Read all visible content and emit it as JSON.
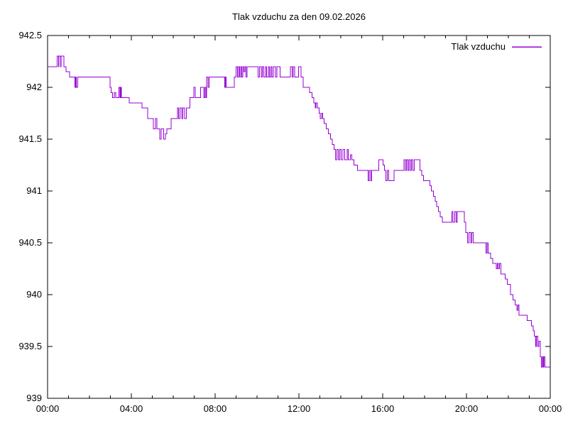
{
  "title": "Tlak vzduchu za den 09.02.2026",
  "legend": {
    "label": "Tlak vzduchu",
    "position": "top-right-inside"
  },
  "colors": {
    "background": "#ffffff",
    "axis": "#000000",
    "line": "#9400d3",
    "text": "#000000"
  },
  "chart_data": {
    "type": "line",
    "title": "Tlak vzduchu za den 09.02.2026",
    "xlabel": "",
    "ylabel": "",
    "x_unit": "hours (HH:MM)",
    "y_unit": "hPa (implied)",
    "xlim_hours": [
      0,
      24
    ],
    "ylim": [
      939,
      942.5
    ],
    "grid": false,
    "legend_position": "top-right-inside",
    "x_ticks_major_hours": [
      0,
      4,
      8,
      12,
      16,
      20,
      24
    ],
    "x_tick_labels": [
      "00:00",
      "04:00",
      "08:00",
      "12:00",
      "16:00",
      "20:00",
      "00:00"
    ],
    "x_minor_tick_interval_hours": 1,
    "y_ticks": [
      939,
      939.5,
      940,
      940.5,
      941,
      941.5,
      942,
      942.5
    ],
    "y_tick_labels": [
      "939",
      "939.5",
      "940",
      "940.5",
      "941",
      "941.5",
      "942",
      "942.5"
    ],
    "series": [
      {
        "name": "Tlak vzduchu",
        "color": "#9400d3",
        "style": "step-after",
        "points": [
          [
            0.0,
            942.2
          ],
          [
            0.45,
            942.3
          ],
          [
            0.52,
            942.2
          ],
          [
            0.55,
            942.3
          ],
          [
            0.62,
            942.2
          ],
          [
            0.65,
            942.3
          ],
          [
            0.78,
            942.2
          ],
          [
            0.88,
            942.15
          ],
          [
            1.05,
            942.1
          ],
          [
            1.3,
            942.0
          ],
          [
            1.34,
            942.1
          ],
          [
            1.38,
            942.0
          ],
          [
            1.44,
            942.1
          ],
          [
            2.98,
            942.0
          ],
          [
            3.04,
            941.95
          ],
          [
            3.1,
            941.9
          ],
          [
            3.18,
            941.95
          ],
          [
            3.25,
            941.9
          ],
          [
            3.4,
            942.0
          ],
          [
            3.45,
            941.9
          ],
          [
            3.49,
            942.0
          ],
          [
            3.53,
            941.9
          ],
          [
            3.9,
            941.85
          ],
          [
            4.5,
            941.8
          ],
          [
            4.78,
            941.7
          ],
          [
            5.05,
            941.6
          ],
          [
            5.15,
            941.7
          ],
          [
            5.22,
            941.6
          ],
          [
            5.35,
            941.5
          ],
          [
            5.42,
            941.6
          ],
          [
            5.55,
            941.5
          ],
          [
            5.62,
            941.55
          ],
          [
            5.7,
            941.6
          ],
          [
            5.9,
            941.7
          ],
          [
            6.2,
            941.8
          ],
          [
            6.26,
            941.7
          ],
          [
            6.32,
            941.8
          ],
          [
            6.4,
            941.7
          ],
          [
            6.46,
            941.8
          ],
          [
            6.55,
            941.7
          ],
          [
            6.62,
            941.8
          ],
          [
            6.8,
            941.9
          ],
          [
            6.98,
            942.0
          ],
          [
            7.05,
            941.9
          ],
          [
            7.3,
            942.0
          ],
          [
            7.45,
            941.9
          ],
          [
            7.5,
            942.0
          ],
          [
            7.56,
            941.9
          ],
          [
            7.6,
            942.1
          ],
          [
            7.66,
            942.0
          ],
          [
            7.72,
            942.1
          ],
          [
            8.45,
            942.0
          ],
          [
            8.49,
            942.1
          ],
          [
            8.53,
            942.0
          ],
          [
            8.92,
            942.1
          ],
          [
            9.0,
            942.2
          ],
          [
            9.06,
            942.1
          ],
          [
            9.12,
            942.2
          ],
          [
            9.17,
            942.1
          ],
          [
            9.22,
            942.2
          ],
          [
            9.27,
            942.1
          ],
          [
            9.32,
            942.2
          ],
          [
            9.38,
            942.15
          ],
          [
            9.43,
            942.2
          ],
          [
            9.48,
            942.1
          ],
          [
            9.53,
            942.2
          ],
          [
            10.05,
            942.1
          ],
          [
            10.12,
            942.2
          ],
          [
            10.2,
            942.1
          ],
          [
            10.26,
            942.2
          ],
          [
            10.32,
            942.1
          ],
          [
            10.4,
            942.2
          ],
          [
            10.46,
            942.1
          ],
          [
            10.54,
            942.2
          ],
          [
            10.6,
            942.1
          ],
          [
            10.66,
            942.2
          ],
          [
            10.72,
            942.1
          ],
          [
            10.78,
            942.2
          ],
          [
            10.88,
            942.1
          ],
          [
            10.95,
            942.2
          ],
          [
            11.1,
            942.1
          ],
          [
            11.6,
            942.2
          ],
          [
            11.67,
            942.1
          ],
          [
            11.73,
            942.2
          ],
          [
            11.8,
            942.1
          ],
          [
            11.98,
            942.2
          ],
          [
            12.1,
            942.1
          ],
          [
            12.2,
            942.0
          ],
          [
            12.5,
            941.95
          ],
          [
            12.62,
            941.9
          ],
          [
            12.72,
            941.85
          ],
          [
            12.78,
            941.8
          ],
          [
            12.82,
            941.85
          ],
          [
            12.88,
            941.8
          ],
          [
            12.97,
            941.75
          ],
          [
            13.02,
            941.7
          ],
          [
            13.08,
            941.75
          ],
          [
            13.13,
            941.7
          ],
          [
            13.2,
            941.65
          ],
          [
            13.3,
            941.6
          ],
          [
            13.4,
            941.55
          ],
          [
            13.5,
            941.5
          ],
          [
            13.6,
            941.45
          ],
          [
            13.68,
            941.4
          ],
          [
            13.75,
            941.3
          ],
          [
            13.82,
            941.4
          ],
          [
            13.88,
            941.3
          ],
          [
            13.95,
            941.4
          ],
          [
            14.02,
            941.3
          ],
          [
            14.1,
            941.4
          ],
          [
            14.18,
            941.3
          ],
          [
            14.3,
            941.4
          ],
          [
            14.36,
            941.3
          ],
          [
            14.45,
            941.35
          ],
          [
            14.52,
            941.3
          ],
          [
            14.62,
            941.25
          ],
          [
            14.8,
            941.2
          ],
          [
            15.3,
            941.1
          ],
          [
            15.35,
            941.2
          ],
          [
            15.42,
            941.1
          ],
          [
            15.48,
            941.2
          ],
          [
            15.82,
            941.3
          ],
          [
            16.02,
            941.25
          ],
          [
            16.08,
            941.2
          ],
          [
            16.15,
            941.1
          ],
          [
            16.22,
            941.2
          ],
          [
            16.28,
            941.1
          ],
          [
            16.55,
            941.2
          ],
          [
            17.02,
            941.3
          ],
          [
            17.08,
            941.2
          ],
          [
            17.14,
            941.3
          ],
          [
            17.2,
            941.2
          ],
          [
            17.26,
            941.3
          ],
          [
            17.32,
            941.2
          ],
          [
            17.38,
            941.3
          ],
          [
            17.44,
            941.2
          ],
          [
            17.5,
            941.3
          ],
          [
            17.78,
            941.2
          ],
          [
            17.86,
            941.15
          ],
          [
            17.95,
            941.1
          ],
          [
            18.25,
            941.05
          ],
          [
            18.33,
            941.0
          ],
          [
            18.42,
            940.95
          ],
          [
            18.5,
            940.9
          ],
          [
            18.58,
            940.85
          ],
          [
            18.66,
            940.8
          ],
          [
            18.75,
            940.75
          ],
          [
            18.85,
            940.7
          ],
          [
            19.3,
            940.8
          ],
          [
            19.36,
            940.7
          ],
          [
            19.44,
            940.8
          ],
          [
            19.5,
            940.7
          ],
          [
            19.56,
            940.8
          ],
          [
            19.9,
            940.7
          ],
          [
            19.96,
            940.6
          ],
          [
            20.05,
            940.5
          ],
          [
            20.12,
            940.6
          ],
          [
            20.2,
            940.5
          ],
          [
            20.26,
            940.6
          ],
          [
            20.33,
            940.5
          ],
          [
            20.93,
            940.4
          ],
          [
            20.98,
            940.5
          ],
          [
            21.03,
            940.4
          ],
          [
            21.15,
            940.35
          ],
          [
            21.25,
            940.3
          ],
          [
            21.42,
            940.25
          ],
          [
            21.47,
            940.3
          ],
          [
            21.52,
            940.25
          ],
          [
            21.58,
            940.3
          ],
          [
            21.65,
            940.2
          ],
          [
            21.85,
            940.15
          ],
          [
            21.95,
            940.1
          ],
          [
            22.1,
            940.0
          ],
          [
            22.22,
            939.95
          ],
          [
            22.32,
            939.9
          ],
          [
            22.4,
            939.85
          ],
          [
            22.45,
            939.9
          ],
          [
            22.5,
            939.8
          ],
          [
            22.9,
            939.75
          ],
          [
            23.1,
            939.7
          ],
          [
            23.18,
            939.65
          ],
          [
            23.24,
            939.6
          ],
          [
            23.3,
            939.5
          ],
          [
            23.34,
            939.6
          ],
          [
            23.4,
            939.5
          ],
          [
            23.46,
            939.55
          ],
          [
            23.52,
            939.4
          ],
          [
            23.58,
            939.3
          ],
          [
            23.62,
            939.4
          ],
          [
            23.66,
            939.3
          ],
          [
            23.7,
            939.4
          ],
          [
            23.74,
            939.3
          ],
          [
            24.0,
            939.3
          ]
        ]
      }
    ]
  }
}
